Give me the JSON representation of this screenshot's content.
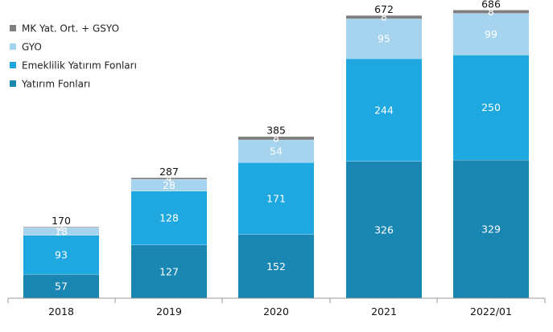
{
  "chart_data": {
    "type": "bar",
    "stacked": true,
    "title": "",
    "xlabel": "",
    "ylabel": "",
    "categories": [
      "2018",
      "2019",
      "2020",
      "2021",
      "2022/01"
    ],
    "series": [
      {
        "name": "Yatırım Fonları",
        "color": "#1a87b3",
        "values": [
          57,
          127,
          152,
          326,
          329
        ],
        "labels": [
          "57",
          "127",
          "152",
          "326",
          "329"
        ]
      },
      {
        "name": "Emeklilik Yatırım Fonları",
        "color": "#1fa8e0",
        "values": [
          93,
          128,
          171,
          244,
          250
        ],
        "labels": [
          "93",
          "128",
          "171",
          "244",
          "250"
        ]
      },
      {
        "name": "GYO",
        "color": "#a6d4ef",
        "values": [
          18,
          28,
          54,
          95,
          99
        ],
        "labels": [
          "18",
          "28",
          "54",
          "95",
          "99"
        ]
      },
      {
        "name": "MK Yat. Ort. + GSYO",
        "color": "#7f7f7f",
        "values": [
          2,
          4,
          8,
          8,
          8
        ],
        "labels": [
          "2",
          "4",
          "8",
          "8",
          "8"
        ]
      }
    ],
    "totals": [
      "170",
      "287",
      "385",
      "672",
      "686"
    ],
    "legend_position": "top-left",
    "legend_order": [
      "MK Yat. Ort. + GSYO",
      "GYO",
      "Emeklilik Yatırım Fonları",
      "Yatırım Fonları"
    ],
    "ylim": [
      0,
      700
    ],
    "grid": false
  }
}
